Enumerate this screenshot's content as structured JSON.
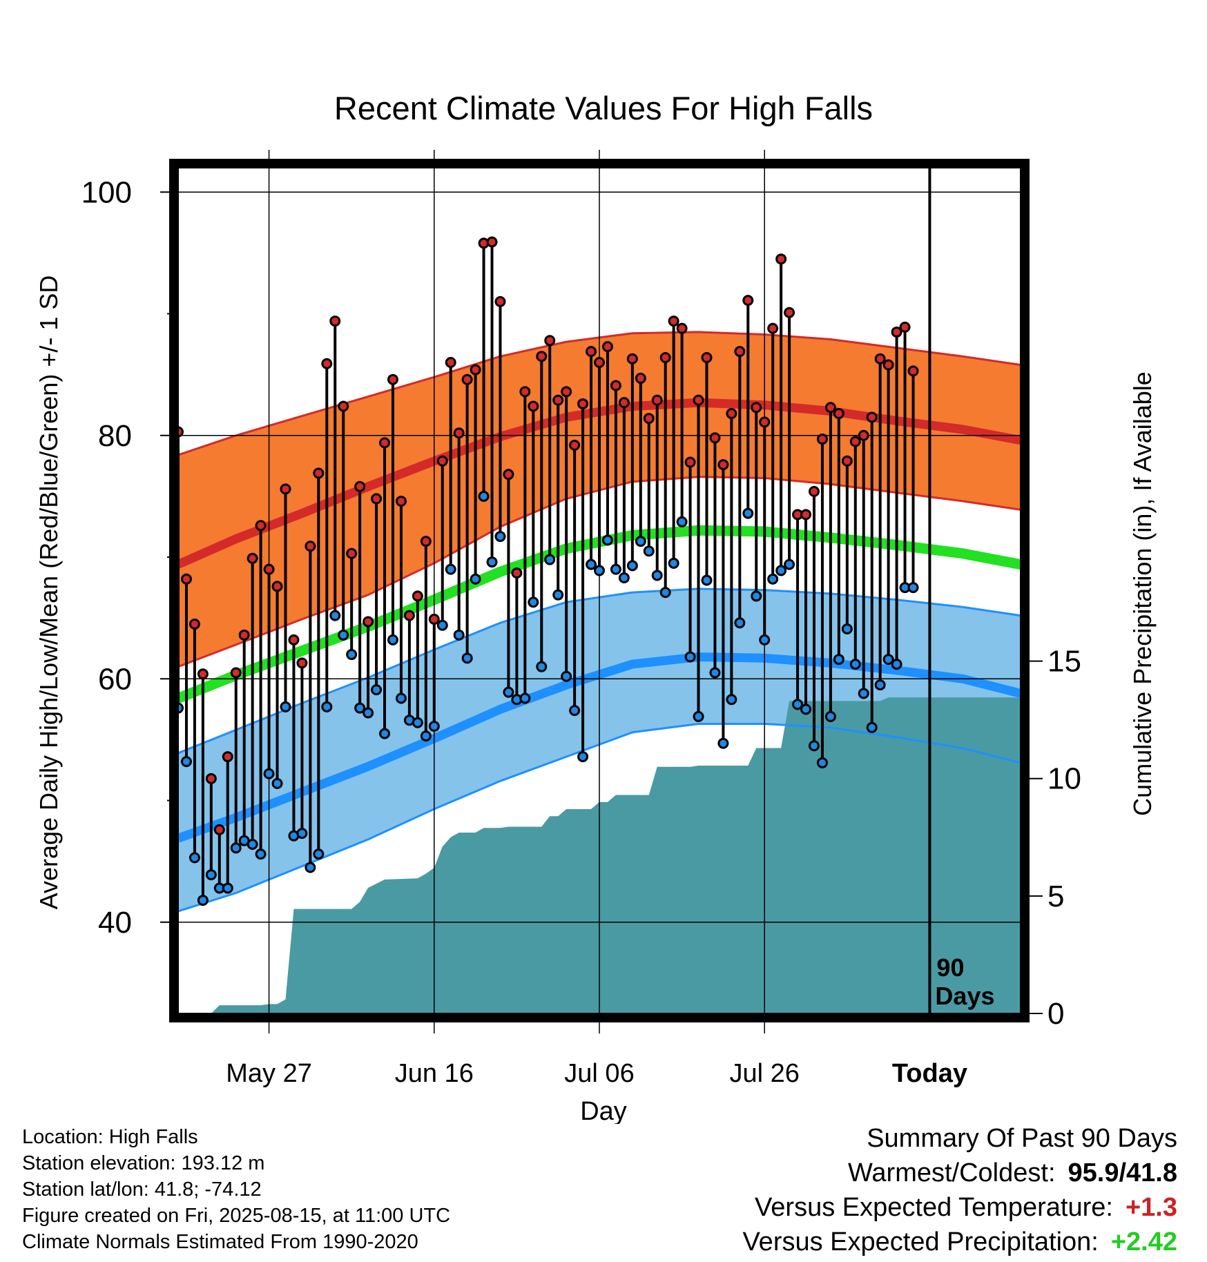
{
  "chart_data": {
    "type": "line",
    "title": "Recent Climate Values For High Falls",
    "xlabel": "Day",
    "ylabel": "Average Daily High/Low/Mean (Red/Blue/Green) +/- 1 SD",
    "y2label": "Cumulative Precipitation (in), If Available",
    "ylim": [
      32.5,
      102
    ],
    "y2lim": [
      0,
      36
    ],
    "y_ticks": [
      40,
      60,
      80,
      100
    ],
    "y2_ticks": [
      0,
      5,
      10,
      15
    ],
    "xlim": [
      1,
      103
    ],
    "x_ticks": [
      {
        "day": 12,
        "label": "May 27"
      },
      {
        "day": 32,
        "label": "Jun 16"
      },
      {
        "day": 52,
        "label": "Jul 06"
      },
      {
        "day": 72,
        "label": "Jul 26"
      },
      {
        "day": 92,
        "label": "Today"
      }
    ],
    "today_day": 92,
    "today_annotation": [
      "90",
      "Days"
    ],
    "grid": true,
    "colors": {
      "high_band": "#f47b30",
      "high_mean": "#d42a2a",
      "band_edge_high": "#d42a2a",
      "low_band": "#85c3eb",
      "low_mean": "#1e90ff",
      "band_edge_low": "#1e90ff",
      "mean_line": "#22e022",
      "precip": "#4a9aa3",
      "high_point": "#d42a2a",
      "low_point": "#1e88e5"
    },
    "normal_days": [
      1,
      8,
      16,
      24,
      32,
      40,
      48,
      56,
      64,
      72,
      80,
      88,
      96,
      103
    ],
    "normal_high": [
      69.4,
      71.5,
      73.6,
      75.8,
      77.9,
      79.9,
      81.5,
      82.4,
      82.7,
      82.5,
      82.0,
      81.2,
      80.5,
      79.6
    ],
    "normal_high_upper": [
      78.4,
      80.0,
      81.6,
      83.2,
      84.8,
      86.5,
      87.7,
      88.4,
      88.5,
      88.3,
      87.9,
      87.2,
      86.5,
      85.8
    ],
    "normal_high_lower": [
      61.0,
      62.8,
      64.9,
      66.9,
      69.5,
      72.5,
      74.8,
      76.2,
      76.6,
      76.5,
      76.0,
      75.3,
      74.6,
      73.9
    ],
    "normal_mean": [
      58.4,
      60.3,
      62.3,
      64.3,
      66.5,
      68.8,
      70.7,
      71.8,
      72.2,
      72.1,
      71.6,
      71.0,
      70.3,
      69.4
    ],
    "normal_low": [
      46.9,
      48.6,
      50.7,
      52.8,
      55.1,
      57.5,
      59.5,
      61.2,
      61.8,
      61.7,
      61.3,
      60.7,
      60.0,
      58.8
    ],
    "normal_low_upper": [
      53.9,
      55.8,
      58.0,
      60.1,
      62.4,
      64.6,
      66.3,
      67.1,
      67.4,
      67.3,
      67.0,
      66.5,
      65.9,
      65.2
    ],
    "normal_low_lower": [
      40.9,
      42.4,
      44.6,
      46.8,
      49.3,
      51.6,
      53.6,
      55.6,
      56.3,
      56.3,
      56.0,
      55.2,
      54.3,
      53.1
    ],
    "daily_high": [
      80.3,
      68.2,
      64.5,
      60.4,
      51.8,
      47.6,
      53.6,
      60.5,
      63.6,
      69.9,
      72.6,
      69.0,
      67.6,
      75.6,
      63.2,
      61.3,
      70.9,
      76.9,
      85.9,
      89.4,
      82.4,
      70.3,
      75.8,
      64.7,
      74.8,
      79.4,
      84.6,
      74.6,
      65.2,
      66.8,
      71.3,
      64.9,
      77.9,
      86.0,
      80.2,
      84.6,
      85.4,
      95.8,
      95.9,
      91.0,
      76.8,
      68.7,
      83.6,
      82.4,
      86.5,
      87.8,
      82.9,
      83.6,
      79.2,
      82.6,
      86.9,
      86.0,
      87.3,
      84.1,
      82.7,
      86.3,
      84.7,
      81.4,
      82.9,
      86.4,
      89.4,
      88.8,
      77.8,
      82.9,
      86.4,
      79.8,
      77.6,
      81.8,
      86.9,
      91.1,
      82.3,
      81.1,
      88.8,
      94.5,
      90.1,
      73.5,
      73.5,
      75.4,
      79.7,
      82.3,
      81.8,
      77.9,
      79.5,
      80.0,
      81.5,
      86.3,
      85.8,
      88.5,
      88.9,
      85.3
    ],
    "daily_low": [
      57.6,
      53.2,
      45.3,
      41.8,
      43.9,
      42.8,
      42.8,
      46.1,
      46.7,
      46.4,
      45.6,
      52.2,
      51.4,
      57.7,
      47.1,
      47.3,
      44.5,
      45.6,
      57.7,
      65.2,
      63.6,
      62.0,
      57.6,
      57.2,
      59.1,
      55.5,
      63.2,
      58.4,
      56.6,
      56.4,
      55.3,
      56.1,
      64.4,
      69.0,
      63.6,
      61.7,
      68.2,
      75.0,
      69.6,
      71.7,
      58.9,
      58.3,
      58.4,
      66.3,
      61.0,
      69.8,
      66.9,
      60.2,
      57.4,
      53.6,
      69.4,
      68.9,
      71.4,
      69.0,
      68.3,
      69.3,
      71.3,
      70.5,
      68.5,
      67.1,
      69.5,
      72.9,
      61.8,
      56.9,
      68.1,
      60.5,
      54.7,
      58.3,
      64.6,
      73.6,
      66.8,
      63.2,
      68.2,
      68.9,
      69.4,
      57.9,
      57.5,
      54.5,
      53.1,
      56.9,
      61.6,
      64.1,
      61.2,
      58.8,
      56.0,
      59.5,
      61.6,
      61.2,
      67.5,
      67.5
    ],
    "precip_steps": [
      [
        1,
        0.0
      ],
      [
        5,
        0.0
      ],
      [
        6,
        0.35
      ],
      [
        11,
        0.35
      ],
      [
        12,
        0.4
      ],
      [
        13,
        0.4
      ],
      [
        14,
        0.6
      ],
      [
        15,
        4.45
      ],
      [
        22,
        4.45
      ],
      [
        23,
        4.75
      ],
      [
        24,
        5.35
      ],
      [
        26,
        5.7
      ],
      [
        30,
        5.75
      ],
      [
        31,
        5.95
      ],
      [
        32,
        6.2
      ],
      [
        33,
        7.1
      ],
      [
        34,
        7.5
      ],
      [
        35,
        7.7
      ],
      [
        37,
        7.7
      ],
      [
        38,
        7.9
      ],
      [
        40,
        7.9
      ],
      [
        41,
        7.95
      ],
      [
        45,
        7.95
      ],
      [
        46,
        8.4
      ],
      [
        47,
        8.4
      ],
      [
        48,
        8.7
      ],
      [
        51,
        8.7
      ],
      [
        52,
        9.0
      ],
      [
        53,
        9.0
      ],
      [
        54,
        9.3
      ],
      [
        58,
        9.3
      ],
      [
        59,
        10.5
      ],
      [
        63,
        10.5
      ],
      [
        64,
        10.55
      ],
      [
        70,
        10.55
      ],
      [
        71,
        11.3
      ],
      [
        74,
        11.3
      ],
      [
        75,
        13.3
      ],
      [
        86,
        13.3
      ],
      [
        87,
        13.45
      ],
      [
        103,
        13.45
      ]
    ]
  },
  "footer": {
    "location": "Location: High Falls",
    "elevation": "Station elevation: 193.12 m",
    "latlon": "Station lat/lon: 41.8; -74.12",
    "created": "Figure created on Fri, 2025-08-15, at 11:00 UTC",
    "normals": "Climate Normals Estimated From 1990-2020"
  },
  "summary": {
    "heading": "Summary Of Past 90 Days",
    "warmest_coldest_label": "Warmest/Coldest:",
    "warmest_coldest_value": "95.9/41.8",
    "temp_label": "Versus Expected Temperature:",
    "temp_value": "+1.3",
    "precip_label": "Versus Expected Precipitation:",
    "precip_value": "+2.42"
  }
}
